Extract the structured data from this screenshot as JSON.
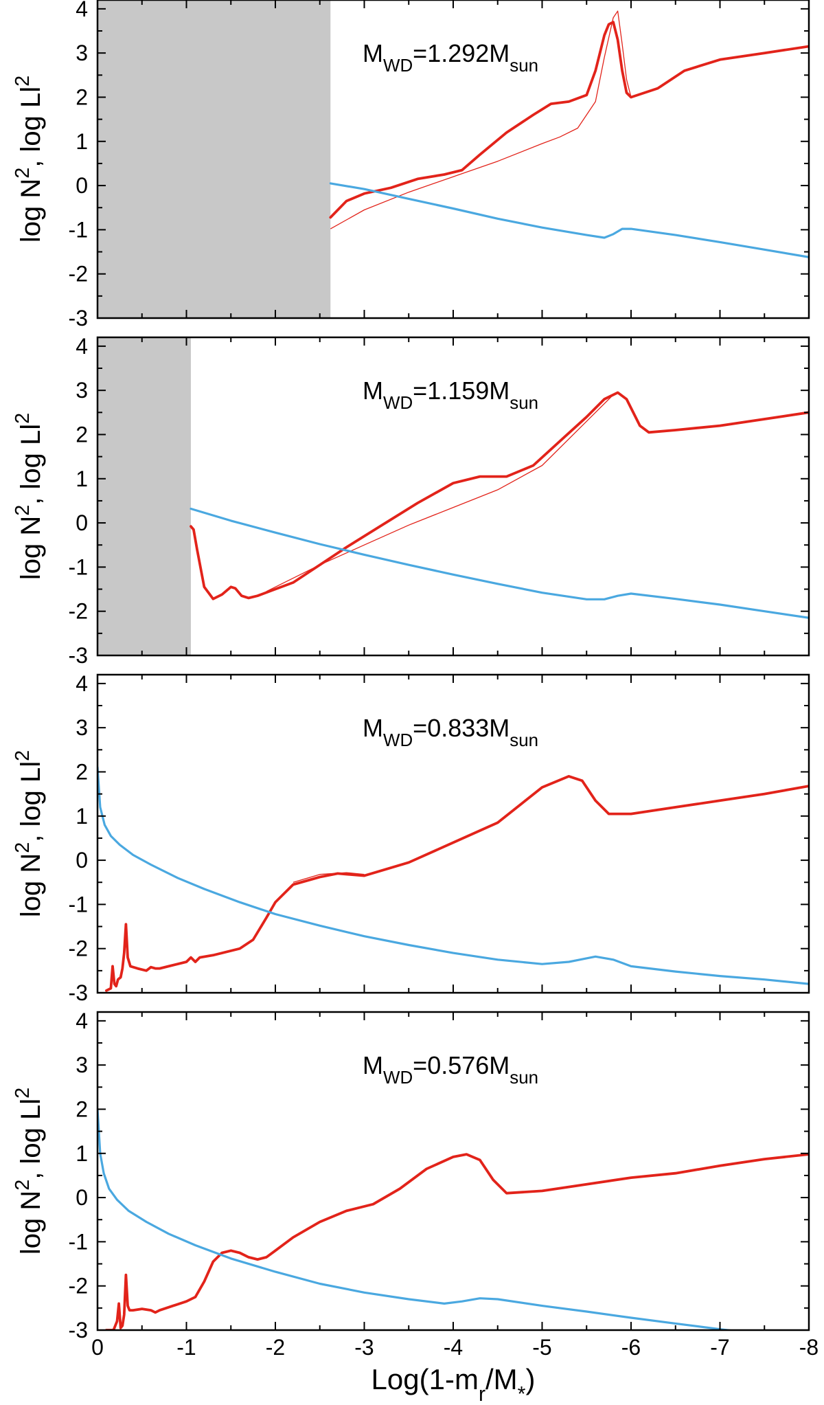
{
  "chart_data": [
    {
      "type": "line",
      "label": "M",
      "label_sub": "WD",
      "label_value": "=1.292M",
      "label_sub2": "sun",
      "ylabel": "log N",
      "ylabel_sup": "2",
      "ylabel_mid": ", log Ll",
      "ylabel_sup2": "2",
      "xlim": [
        0,
        -8
      ],
      "ylim": [
        -3,
        4.2
      ],
      "shaded_region": [
        0,
        -2.62
      ],
      "series": [
        {
          "style": "thick-red",
          "x": [
            -2.62,
            -2.8,
            -3.0,
            -3.3,
            -3.6,
            -3.9,
            -4.1,
            -4.3,
            -4.6,
            -4.9,
            -5.1,
            -5.3,
            -5.5,
            -5.6,
            -5.7,
            -5.75,
            -5.8,
            -5.85,
            -5.9,
            -5.95,
            -6.0,
            -6.3,
            -6.6,
            -7.0,
            -7.5,
            -8.0
          ],
          "y": [
            -0.72,
            -0.35,
            -0.18,
            -0.05,
            0.15,
            0.25,
            0.35,
            0.7,
            1.2,
            1.6,
            1.85,
            1.9,
            2.05,
            2.6,
            3.4,
            3.65,
            3.7,
            3.3,
            2.6,
            2.1,
            2.0,
            2.2,
            2.6,
            2.85,
            3.0,
            3.15
          ]
        },
        {
          "style": "thin-red",
          "x": [
            -2.62,
            -3.0,
            -3.5,
            -4.0,
            -4.5,
            -5.0,
            -5.2,
            -5.4,
            -5.6,
            -5.7,
            -5.8,
            -5.85,
            -5.9,
            -5.95,
            -6.0
          ],
          "y": [
            -0.98,
            -0.55,
            -0.15,
            0.2,
            0.55,
            0.95,
            1.1,
            1.3,
            1.9,
            2.9,
            3.8,
            3.95,
            3.2,
            2.4,
            2.0
          ]
        },
        {
          "style": "blue",
          "x": [
            -2.62,
            -3.0,
            -3.5,
            -4.0,
            -4.5,
            -5.0,
            -5.5,
            -5.7,
            -5.8,
            -5.9,
            -6.0,
            -6.5,
            -7.0,
            -7.5,
            -8.0
          ],
          "y": [
            0.05,
            -0.08,
            -0.3,
            -0.52,
            -0.75,
            -0.95,
            -1.12,
            -1.18,
            -1.1,
            -0.98,
            -0.98,
            -1.12,
            -1.28,
            -1.45,
            -1.62
          ]
        }
      ]
    },
    {
      "type": "line",
      "label": "M",
      "label_sub": "WD",
      "label_value": "=1.159M",
      "label_sub2": "sun",
      "ylabel": "log N",
      "ylabel_sup": "2",
      "ylabel_mid": ", log Ll",
      "ylabel_sup2": "2",
      "xlim": [
        0,
        -8
      ],
      "ylim": [
        -3,
        4.2
      ],
      "shaded_region": [
        0,
        -1.05
      ],
      "series": [
        {
          "style": "thick-red",
          "x": [
            -1.05,
            -1.08,
            -1.12,
            -1.2,
            -1.3,
            -1.4,
            -1.5,
            -1.55,
            -1.62,
            -1.7,
            -1.8,
            -2.0,
            -2.2,
            -2.5,
            -2.8,
            -3.2,
            -3.6,
            -4.0,
            -4.3,
            -4.6,
            -4.9,
            -5.2,
            -5.5,
            -5.7,
            -5.85,
            -5.95,
            -6.1,
            -6.2,
            -6.5,
            -7.0,
            -7.5,
            -8.0
          ],
          "y": [
            -0.08,
            -0.15,
            -0.6,
            -1.45,
            -1.72,
            -1.62,
            -1.45,
            -1.48,
            -1.65,
            -1.7,
            -1.65,
            -1.5,
            -1.35,
            -0.95,
            -0.55,
            -0.05,
            0.45,
            0.9,
            1.05,
            1.05,
            1.3,
            1.85,
            2.4,
            2.8,
            2.95,
            2.8,
            2.2,
            2.05,
            2.1,
            2.2,
            2.35,
            2.5
          ]
        },
        {
          "style": "thin-red",
          "x": [
            -1.9,
            -2.5,
            -3.0,
            -3.5,
            -4.0,
            -4.5,
            -5.0,
            -5.5,
            -5.8
          ],
          "y": [
            -1.55,
            -0.95,
            -0.5,
            -0.05,
            0.35,
            0.75,
            1.3,
            2.3,
            2.9
          ]
        },
        {
          "style": "blue",
          "x": [
            -1.05,
            -1.5,
            -2.0,
            -2.5,
            -3.0,
            -3.5,
            -4.0,
            -4.5,
            -5.0,
            -5.5,
            -5.7,
            -5.85,
            -6.0,
            -6.5,
            -7.0,
            -7.5,
            -8.0
          ],
          "y": [
            0.32,
            0.05,
            -0.22,
            -0.48,
            -0.72,
            -0.95,
            -1.17,
            -1.38,
            -1.58,
            -1.73,
            -1.73,
            -1.65,
            -1.6,
            -1.72,
            -1.85,
            -2.0,
            -2.15
          ]
        }
      ]
    },
    {
      "type": "line",
      "label": "M",
      "label_sub": "WD",
      "label_value": "=0.833M",
      "label_sub2": "sun",
      "ylabel": "log N",
      "ylabel_sup": "2",
      "ylabel_mid": ", log Ll",
      "ylabel_sup2": "2",
      "xlim": [
        0,
        -8
      ],
      "ylim": [
        -3,
        4.2
      ],
      "shaded_region": null,
      "series": [
        {
          "style": "thick-red",
          "x": [
            -0.1,
            -0.15,
            -0.17,
            -0.19,
            -0.21,
            -0.23,
            -0.26,
            -0.28,
            -0.3,
            -0.32,
            -0.34,
            -0.37,
            -0.45,
            -0.55,
            -0.6,
            -0.65,
            -0.7,
            -0.8,
            -1.0,
            -1.05,
            -1.1,
            -1.15,
            -1.3,
            -1.6,
            -1.75,
            -1.9,
            -2.0,
            -2.2,
            -2.5,
            -2.7,
            -3.0,
            -3.5,
            -4.0,
            -4.5,
            -5.0,
            -5.3,
            -5.45,
            -5.6,
            -5.75,
            -6.0,
            -6.5,
            -7.0,
            -7.5,
            -8.0
          ],
          "y": [
            -2.95,
            -2.9,
            -2.4,
            -2.8,
            -2.85,
            -2.7,
            -2.65,
            -2.45,
            -2.1,
            -1.45,
            -2.2,
            -2.4,
            -2.45,
            -2.5,
            -2.42,
            -2.45,
            -2.45,
            -2.4,
            -2.3,
            -2.2,
            -2.3,
            -2.2,
            -2.15,
            -2.0,
            -1.8,
            -1.3,
            -0.95,
            -0.55,
            -0.38,
            -0.3,
            -0.35,
            -0.05,
            0.4,
            0.85,
            1.65,
            1.9,
            1.8,
            1.35,
            1.05,
            1.05,
            1.2,
            1.35,
            1.5,
            1.68
          ]
        },
        {
          "style": "thin-red",
          "x": [
            -2.2,
            -2.5,
            -2.8,
            -3.0
          ],
          "y": [
            -0.5,
            -0.32,
            -0.28,
            -0.32
          ]
        },
        {
          "style": "blue",
          "x": [
            0,
            -0.03,
            -0.08,
            -0.15,
            -0.25,
            -0.4,
            -0.6,
            -0.9,
            -1.2,
            -1.6,
            -2.0,
            -2.5,
            -3.0,
            -3.5,
            -4.0,
            -4.5,
            -5.0,
            -5.3,
            -5.6,
            -5.8,
            -6.0,
            -6.5,
            -7.0,
            -7.5,
            -8.0
          ],
          "y": [
            2.1,
            1.2,
            0.8,
            0.55,
            0.35,
            0.12,
            -0.1,
            -0.4,
            -0.65,
            -0.95,
            -1.22,
            -1.48,
            -1.72,
            -1.92,
            -2.1,
            -2.25,
            -2.35,
            -2.3,
            -2.18,
            -2.25,
            -2.4,
            -2.52,
            -2.62,
            -2.7,
            -2.8
          ]
        }
      ]
    },
    {
      "type": "line",
      "label": "M",
      "label_sub": "WD",
      "label_value": "=0.576M",
      "label_sub2": "sun",
      "ylabel": "log N",
      "ylabel_sup": "2",
      "ylabel_mid": ", log Ll",
      "ylabel_sup2": "2",
      "xlabel": "Log(1-m",
      "xlabel_sub": "r",
      "xlabel_end": "/M",
      "xlabel_star": "*",
      "xlabel_close": ")",
      "xticks": [
        "0",
        "-1",
        "-2",
        "-3",
        "-4",
        "-5",
        "-6",
        "-7",
        "-8"
      ],
      "xlim": [
        0,
        -8
      ],
      "ylim": [
        -3,
        4.2
      ],
      "shaded_region": null,
      "series": [
        {
          "style": "thick-red",
          "x": [
            -0.1,
            -0.18,
            -0.22,
            -0.24,
            -0.26,
            -0.28,
            -0.3,
            -0.32,
            -0.34,
            -0.36,
            -0.4,
            -0.5,
            -0.6,
            -0.65,
            -0.7,
            -0.85,
            -1.0,
            -1.1,
            -1.2,
            -1.3,
            -1.4,
            -1.5,
            -1.6,
            -1.7,
            -1.8,
            -1.9,
            -2.0,
            -2.2,
            -2.5,
            -2.8,
            -3.1,
            -3.4,
            -3.7,
            -4.0,
            -4.15,
            -4.3,
            -4.45,
            -4.6,
            -5.0,
            -5.5,
            -6.0,
            -6.5,
            -7.0,
            -7.5,
            -8.0
          ],
          "y": [
            -3.0,
            -3.0,
            -2.8,
            -2.4,
            -2.95,
            -2.9,
            -2.65,
            -1.75,
            -2.45,
            -2.55,
            -2.55,
            -2.52,
            -2.55,
            -2.6,
            -2.55,
            -2.45,
            -2.35,
            -2.25,
            -1.9,
            -1.45,
            -1.25,
            -1.2,
            -1.25,
            -1.35,
            -1.4,
            -1.35,
            -1.2,
            -0.9,
            -0.55,
            -0.3,
            -0.15,
            0.2,
            0.65,
            0.92,
            0.98,
            0.85,
            0.4,
            0.1,
            0.15,
            0.3,
            0.45,
            0.55,
            0.72,
            0.87,
            0.98
          ]
        },
        {
          "style": "blue",
          "x": [
            0,
            -0.03,
            -0.07,
            -0.13,
            -0.22,
            -0.35,
            -0.55,
            -0.8,
            -1.1,
            -1.5,
            -2.0,
            -2.5,
            -3.0,
            -3.5,
            -3.9,
            -4.1,
            -4.3,
            -4.5,
            -5.0,
            -5.5,
            -6.0,
            -6.5,
            -7.0,
            -7.5,
            -8.0
          ],
          "y": [
            2.0,
            1.0,
            0.55,
            0.2,
            -0.05,
            -0.3,
            -0.55,
            -0.82,
            -1.08,
            -1.38,
            -1.68,
            -1.95,
            -2.15,
            -2.3,
            -2.4,
            -2.35,
            -2.28,
            -2.3,
            -2.45,
            -2.58,
            -2.72,
            -2.85,
            -2.98,
            -3.1,
            -3.22
          ]
        }
      ]
    }
  ],
  "yticks": [
    "4",
    "3",
    "2",
    "1",
    "0",
    "-1",
    "-2",
    "-3"
  ],
  "colors": {
    "n2": "#e2231a",
    "l2": "#4aa8e0",
    "shade": "#c8c8c8"
  }
}
